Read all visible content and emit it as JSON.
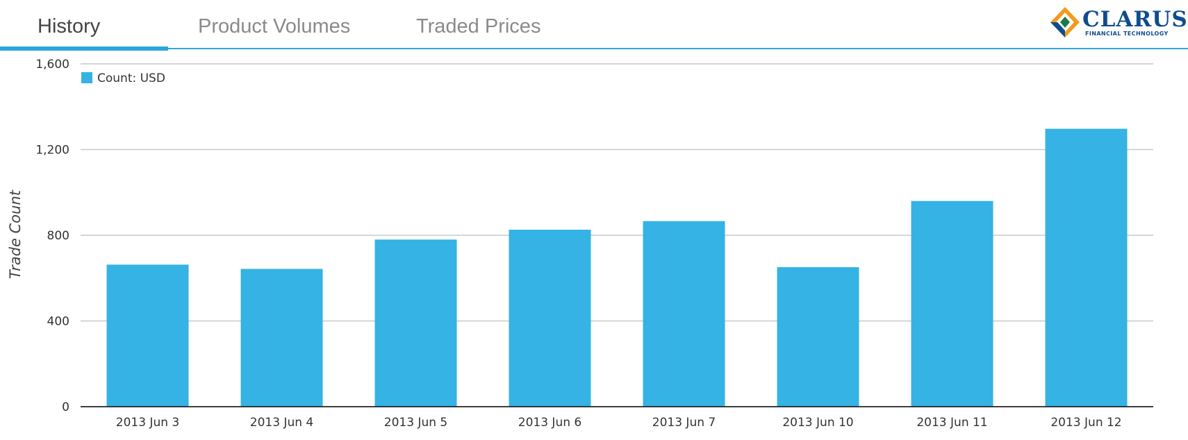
{
  "tabs": [
    {
      "label": "History",
      "active": true
    },
    {
      "label": "Product Volumes",
      "active": false
    },
    {
      "label": "Traded Prices",
      "active": false
    }
  ],
  "logo": {
    "name": "CLARUS",
    "tagline": "FINANCIAL TECHNOLOGY"
  },
  "colors": {
    "accent": "#2aa6dd",
    "bar": "#34b3e4",
    "grid": "#c8c8c8",
    "axis": "#222222"
  },
  "chart_data": {
    "type": "bar",
    "categories": [
      "2013 Jun 3",
      "2013 Jun 4",
      "2013 Jun 5",
      "2013 Jun 6",
      "2013 Jun 7",
      "2013 Jun 10",
      "2013 Jun 11",
      "2013 Jun 12"
    ],
    "series": [
      {
        "name": "Count: USD",
        "values": [
          663,
          643,
          780,
          826,
          866,
          651,
          960,
          1297
        ]
      }
    ],
    "ylabel": "Trade Count",
    "xlabel": "",
    "ylim": [
      0,
      1600
    ],
    "yticks": [
      0,
      400,
      800,
      1200,
      1600
    ],
    "ytick_labels": [
      "0",
      "400",
      "800",
      "1,200",
      "1,600"
    ],
    "grid": true,
    "legend_position": "top-left"
  }
}
